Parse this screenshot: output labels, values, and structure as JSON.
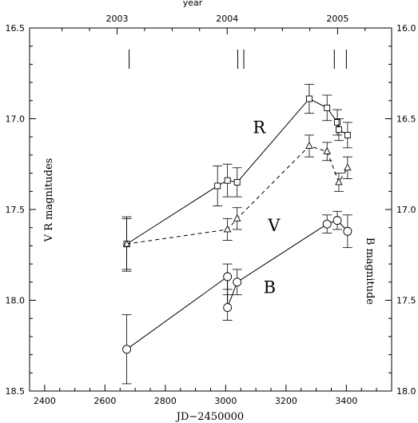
{
  "chart_data": {
    "type": "scatter",
    "xlabel": "JD−2450000",
    "ylabel_left": "V R magnitudes",
    "ylabel_right": "B magnitude",
    "top_axis_label": "year",
    "xlim": [
      2350,
      3550
    ],
    "ylim_left": [
      16.5,
      18.5
    ],
    "ylim_right": [
      16.0,
      18.0
    ],
    "x_ticks": [
      2400,
      2600,
      2800,
      3000,
      3200,
      3400
    ],
    "y_ticks_left": [
      "16.5",
      "17.0",
      "17.5",
      "18.0",
      "18.5"
    ],
    "y_ticks_right": [
      "16.0",
      "16.5",
      "17.0",
      "17.5",
      "18.0"
    ],
    "year_ticks": [
      {
        "label": "2003",
        "jd": 2640
      },
      {
        "label": "2004",
        "jd": 3005
      },
      {
        "label": "2005",
        "jd": 3371
      }
    ],
    "year_markers_jd": [
      2680,
      3040,
      3060,
      3360,
      3400
    ],
    "series": [
      {
        "name": "R",
        "axis": "left",
        "marker": "square",
        "line": "solid",
        "label_pos": {
          "x": 3090,
          "y": 17.08
        },
        "points": [
          {
            "x": 2672,
            "y": 17.69,
            "err": 0.15
          },
          {
            "x": 2973,
            "y": 17.37,
            "err": 0.11
          },
          {
            "x": 3006,
            "y": 17.34,
            "err": 0.09
          },
          {
            "x": 3038,
            "y": 17.35,
            "err": 0.08
          },
          {
            "x": 3277,
            "y": 16.89,
            "err": 0.08
          },
          {
            "x": 3336,
            "y": 16.94,
            "err": 0.07
          },
          {
            "x": 3370,
            "y": 17.02,
            "err": 0.07
          },
          {
            "x": 3375,
            "y": 17.06,
            "err": 0.06
          },
          {
            "x": 3404,
            "y": 17.09,
            "err": 0.07
          }
        ]
      },
      {
        "name": "V",
        "axis": "left",
        "marker": "triangle",
        "line": "dashed",
        "label_pos": {
          "x": 3140,
          "y": 17.62
        },
        "points": [
          {
            "x": 2672,
            "y": 17.69,
            "err": 0.14
          },
          {
            "x": 3006,
            "y": 17.61,
            "err": 0.06
          },
          {
            "x": 3038,
            "y": 17.55,
            "err": 0.06
          },
          {
            "x": 3277,
            "y": 17.15,
            "err": 0.06
          },
          {
            "x": 3336,
            "y": 17.18,
            "err": 0.05
          },
          {
            "x": 3375,
            "y": 17.35,
            "err": 0.05
          },
          {
            "x": 3404,
            "y": 17.27,
            "err": 0.06
          }
        ]
      },
      {
        "name": "B",
        "axis": "right",
        "marker": "circle",
        "line": "solid",
        "label_pos": {
          "x": 3125,
          "y": 17.96
        },
        "points": [
          {
            "x": 2672,
            "y": 17.77,
            "err": 0.19
          },
          {
            "x": 3006,
            "y": 17.37,
            "err": 0.07
          },
          {
            "x": 3006,
            "y": 17.54,
            "err": 0.07
          },
          {
            "x": 3038,
            "y": 17.4,
            "err": 0.07
          },
          {
            "x": 3336,
            "y": 17.08,
            "err": 0.05
          },
          {
            "x": 3370,
            "y": 17.06,
            "err": 0.05
          },
          {
            "x": 3404,
            "y": 17.12,
            "err": 0.09
          }
        ]
      }
    ]
  }
}
